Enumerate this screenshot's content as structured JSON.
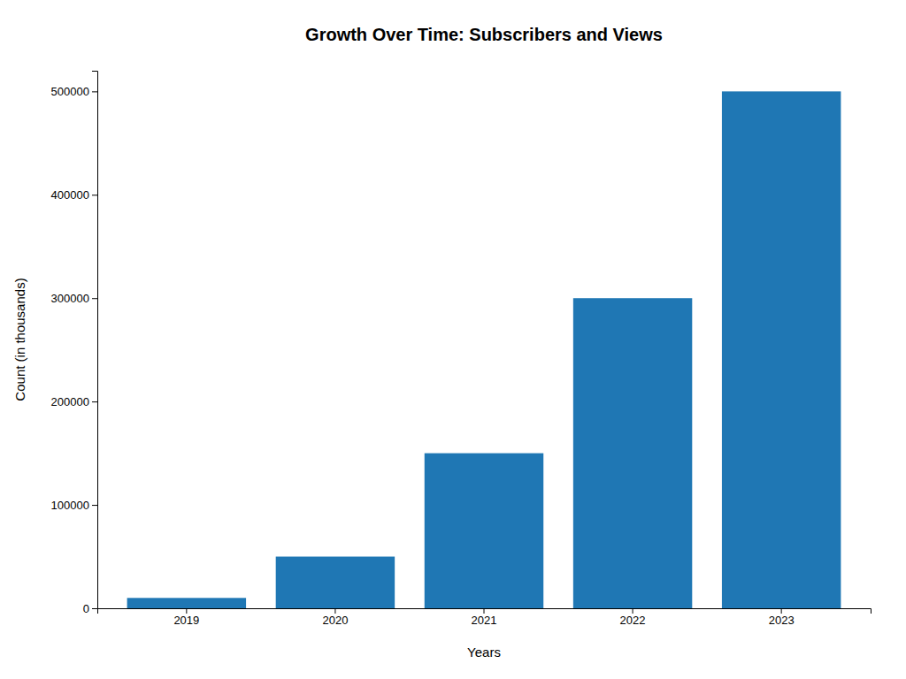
{
  "chart_data": {
    "type": "bar",
    "title": "Growth Over Time: Subscribers and Views",
    "xlabel": "Years",
    "ylabel": "Count (in thousands)",
    "categories": [
      "2019",
      "2020",
      "2021",
      "2022",
      "2023"
    ],
    "values": [
      10000,
      50000,
      150000,
      300000,
      500000
    ],
    "color": "#1f77b4",
    "ylim": [
      0,
      520000
    ],
    "yticks": [
      0,
      100000,
      200000,
      300000,
      400000,
      500000
    ],
    "grid": false
  }
}
